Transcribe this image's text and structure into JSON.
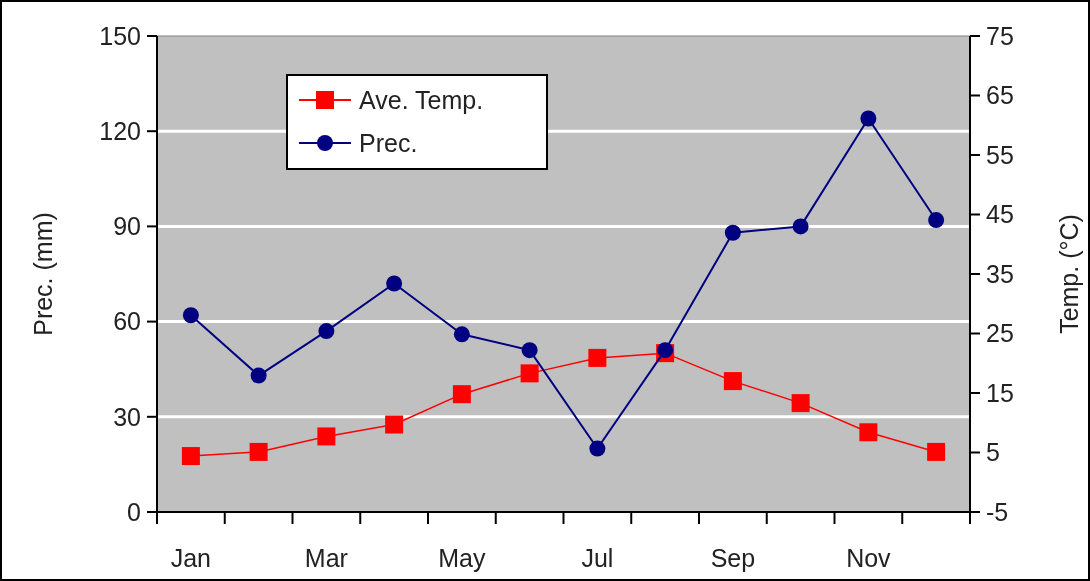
{
  "chart_data": {
    "type": "line",
    "categories": [
      "Jan",
      null,
      "Mar",
      null,
      "May",
      null,
      "Jul",
      null,
      "Sep",
      null,
      "Nov",
      null
    ],
    "series": [
      {
        "name": "Ave. Temp.",
        "color": "#ff0000",
        "axis": "y2",
        "marker": "square",
        "values": [
          4.4,
          5.1,
          7.7,
          9.7,
          14.8,
          18.3,
          20.9,
          21.7,
          17.0,
          13.3,
          8.4,
          5.1
        ]
      },
      {
        "name": "Prec.",
        "color": "#000080",
        "marker": "circle",
        "values": [
          62,
          43,
          57,
          72,
          56,
          51,
          20,
          51,
          88,
          90,
          124,
          92
        ]
      }
    ],
    "ylabel": "Prec. (mm)",
    "y2label": "Temp. (°C)",
    "ylim": [
      0,
      150
    ],
    "yticks": [
      0,
      30,
      60,
      90,
      120,
      150
    ],
    "y2lim": [
      -5,
      75
    ],
    "y2ticks": [
      -5,
      5,
      15,
      25,
      35,
      45,
      55,
      65,
      75
    ],
    "grid": "y",
    "legend": "top left",
    "line_style": "solid"
  }
}
